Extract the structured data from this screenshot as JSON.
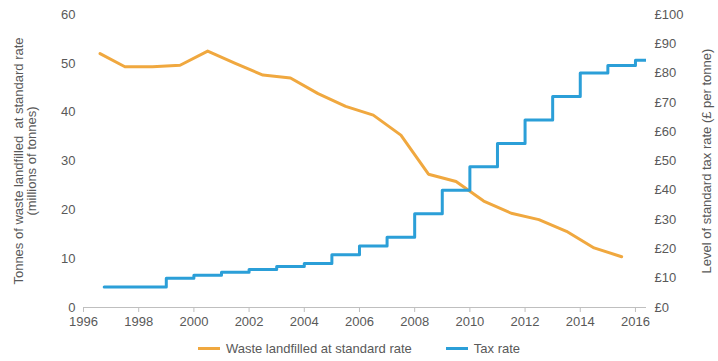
{
  "chart_data": {
    "type": "line",
    "y_label": "Tonnes of waste landfilled  at standard rate\n(millions of tonnes)",
    "y2_label": "Level of standard tax rate (£ per tonne)",
    "xlim": [
      1996,
      2016.4
    ],
    "xticks": [
      1996,
      1998,
      2000,
      2002,
      2004,
      2006,
      2008,
      2010,
      2012,
      2014,
      2016
    ],
    "ylim": [
      0,
      60
    ],
    "yticks": [
      0,
      10,
      20,
      30,
      40,
      50,
      60
    ],
    "y2lim": [
      0,
      100
    ],
    "y2ticks": [
      {
        "value": 0,
        "label": "£0"
      },
      {
        "value": 10,
        "label": "£10"
      },
      {
        "value": 20,
        "label": "£20"
      },
      {
        "value": 30,
        "label": "£30"
      },
      {
        "value": 40,
        "label": "£40"
      },
      {
        "value": 50,
        "label": "£50"
      },
      {
        "value": 60,
        "label": "£60"
      },
      {
        "value": 70,
        "label": "£70"
      },
      {
        "value": 80,
        "label": "£80"
      },
      {
        "value": 90,
        "label": "£90"
      },
      {
        "value": 100,
        "label": "£100"
      }
    ],
    "grid": false,
    "legend": "bottom",
    "series": [
      {
        "name": "Waste landfilled at standard rate",
        "color": "#f0a83f",
        "x": [
          1996.6,
          1997.5,
          1998.5,
          1999.5,
          2000.5,
          2001.5,
          2002.5,
          2003.5,
          2004.5,
          2005.5,
          2006.5,
          2007.5,
          2008.5,
          2009.5,
          2010.5,
          2011.5,
          2012.5,
          2013.5,
          2014.5,
          2015.5
        ],
        "values": [
          52,
          49.3,
          49.3,
          49.6,
          52.5,
          50,
          47.6,
          47,
          43.8,
          41.2,
          39.4,
          35.3,
          27.3,
          25.8,
          21.8,
          19.3,
          18,
          15.6,
          12.2,
          10.4
        ]
      },
      {
        "name": "Tax rate",
        "color": "#2b9fd8",
        "axis": "y2",
        "line_style": "step",
        "x": [
          1996.75,
          1999,
          2000,
          2001,
          2002,
          2003,
          2004,
          2005,
          2006,
          2007,
          2008,
          2009,
          2010,
          2011,
          2012,
          2013,
          2014,
          2015,
          2016,
          2016.4
        ],
        "values": [
          7,
          10,
          11,
          12,
          13,
          14,
          15,
          18,
          21,
          24,
          32,
          40,
          48,
          56,
          64,
          72,
          80,
          82.6,
          84.4,
          84.4
        ]
      }
    ]
  }
}
